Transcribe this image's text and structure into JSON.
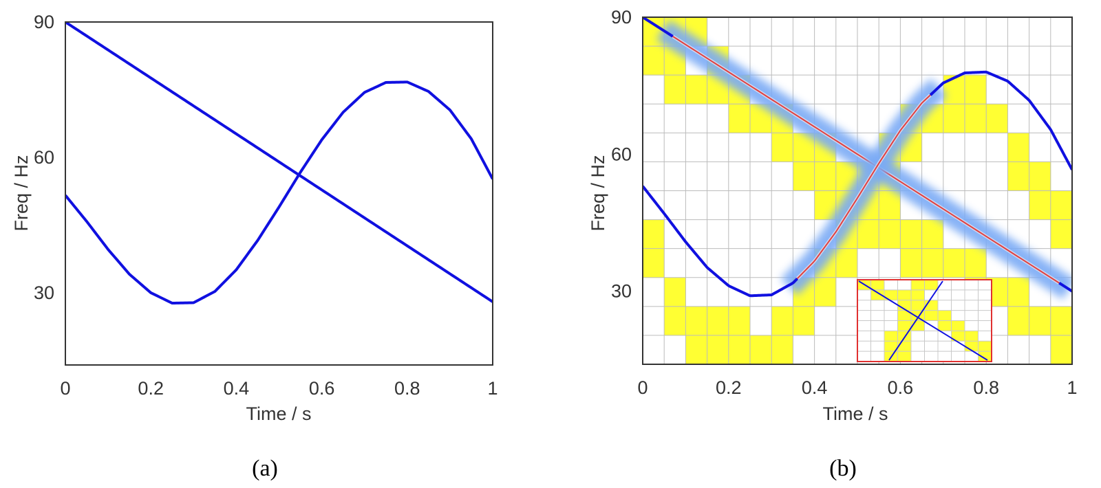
{
  "chart_data": [
    {
      "type": "line",
      "panel": "a",
      "caption": "(a)",
      "xlabel": "Time / s",
      "ylabel": "Freq / Hz",
      "xlim": [
        0,
        1
      ],
      "ylim": [
        14,
        90
      ],
      "xticks": [
        0,
        0.2,
        0.4,
        0.6,
        0.8,
        1
      ],
      "xtick_labels": [
        "0",
        "0.2",
        "0.4",
        "0.6",
        "0.8",
        "1"
      ],
      "yticks": [
        30,
        60,
        90
      ],
      "ytick_labels": [
        "30",
        "60",
        "90"
      ],
      "line_color": "#1010e0",
      "series": [
        {
          "x": [
            0,
            1
          ],
          "y": [
            90,
            28
          ]
        },
        {
          "x": [
            0,
            0.05,
            0.1,
            0.15,
            0.2,
            0.25,
            0.3,
            0.35,
            0.4,
            0.45,
            0.5,
            0.55,
            0.6,
            0.65,
            0.7,
            0.75,
            0.8,
            0.85,
            0.9,
            0.95,
            1
          ],
          "y": [
            51.6,
            45.8,
            39.6,
            34.1,
            30.0,
            27.7,
            27.8,
            30.3,
            35.1,
            41.6,
            49.0,
            56.7,
            63.9,
            70.0,
            74.4,
            76.6,
            76.7,
            74.6,
            70.5,
            64.1,
            55.2
          ]
        }
      ]
    },
    {
      "type": "line",
      "panel": "b",
      "caption": "(b)",
      "xlabel": "Time / s",
      "ylabel": "Freq / Hz",
      "xlim": [
        0,
        1
      ],
      "ylim": [
        14,
        90
      ],
      "xticks": [
        0,
        0.2,
        0.4,
        0.6,
        0.8,
        1
      ],
      "xtick_labels": [
        "0",
        "0.2",
        "0.4",
        "0.6",
        "0.8",
        "1"
      ],
      "yticks": [
        30,
        60,
        90
      ],
      "ytick_labels": [
        "30",
        "60",
        "90"
      ],
      "grid": true,
      "grid_cols": 20,
      "grid_rows": 12,
      "line_color": "#1010e0",
      "highlight_color": "#ffff33",
      "glow_color": "#7aaaf5",
      "core_color": "#e04040",
      "inset_border_color": "#e03030",
      "series": [
        {
          "x": [
            0,
            1
          ],
          "y": [
            90,
            30
          ]
        },
        {
          "x": [
            0,
            0.05,
            0.1,
            0.15,
            0.2,
            0.25,
            0.3,
            0.35,
            0.4,
            0.45,
            0.5,
            0.55,
            0.6,
            0.65,
            0.7,
            0.75,
            0.8,
            0.85,
            0.9,
            0.95,
            1
          ],
          "y": [
            53,
            47,
            40.8,
            35.2,
            31.2,
            29.0,
            29.2,
            31.8,
            36.6,
            43.0,
            50.4,
            58.0,
            65.2,
            71.2,
            75.6,
            77.8,
            78.0,
            76.0,
            71.8,
            65.4,
            56.6
          ]
        }
      ],
      "highlighted_cells": [
        [
          0,
          11
        ],
        [
          1,
          11
        ],
        [
          2,
          11
        ],
        [
          0,
          10
        ],
        [
          1,
          10
        ],
        [
          3,
          10
        ],
        [
          1,
          9
        ],
        [
          2,
          9
        ],
        [
          3,
          9
        ],
        [
          4,
          9
        ],
        [
          14,
          9
        ],
        [
          15,
          9
        ],
        [
          4,
          8
        ],
        [
          5,
          8
        ],
        [
          6,
          8
        ],
        [
          12,
          8
        ],
        [
          13,
          8
        ],
        [
          14,
          8
        ],
        [
          15,
          8
        ],
        [
          16,
          8
        ],
        [
          6,
          7
        ],
        [
          7,
          7
        ],
        [
          8,
          7
        ],
        [
          11,
          7
        ],
        [
          12,
          7
        ],
        [
          17,
          7
        ],
        [
          7,
          6
        ],
        [
          8,
          6
        ],
        [
          9,
          6
        ],
        [
          10,
          6
        ],
        [
          11,
          6
        ],
        [
          17,
          6
        ],
        [
          18,
          6
        ],
        [
          8,
          5
        ],
        [
          9,
          5
        ],
        [
          10,
          5
        ],
        [
          11,
          5
        ],
        [
          18,
          5
        ],
        [
          19,
          5
        ],
        [
          0,
          4
        ],
        [
          9,
          4
        ],
        [
          10,
          4
        ],
        [
          11,
          4
        ],
        [
          12,
          4
        ],
        [
          13,
          4
        ],
        [
          19,
          4
        ],
        [
          0,
          3
        ],
        [
          8,
          3
        ],
        [
          9,
          3
        ],
        [
          12,
          3
        ],
        [
          13,
          3
        ],
        [
          14,
          3
        ],
        [
          15,
          3
        ],
        [
          1,
          2
        ],
        [
          7,
          2
        ],
        [
          8,
          2
        ],
        [
          15,
          2
        ],
        [
          16,
          2
        ],
        [
          17,
          2
        ],
        [
          1,
          1
        ],
        [
          2,
          1
        ],
        [
          3,
          1
        ],
        [
          4,
          1
        ],
        [
          6,
          1
        ],
        [
          7,
          1
        ],
        [
          17,
          1
        ],
        [
          18,
          1
        ],
        [
          19,
          1
        ],
        [
          2,
          0
        ],
        [
          3,
          0
        ],
        [
          4,
          0
        ],
        [
          5,
          0
        ],
        [
          6,
          0
        ],
        [
          19,
          0
        ]
      ],
      "inset_highlighted_cells": [
        [
          0,
          7
        ],
        [
          1,
          7
        ],
        [
          4,
          7
        ],
        [
          5,
          7
        ],
        [
          1,
          6
        ],
        [
          2,
          6
        ],
        [
          3,
          6
        ],
        [
          4,
          6
        ],
        [
          3,
          5
        ],
        [
          4,
          5
        ],
        [
          5,
          5
        ],
        [
          3,
          4
        ],
        [
          4,
          4
        ],
        [
          5,
          4
        ],
        [
          6,
          4
        ],
        [
          3,
          3
        ],
        [
          4,
          3
        ],
        [
          6,
          3
        ],
        [
          7,
          3
        ],
        [
          2,
          2
        ],
        [
          3,
          2
        ],
        [
          7,
          2
        ],
        [
          8,
          2
        ],
        [
          2,
          1
        ],
        [
          3,
          1
        ],
        [
          8,
          1
        ],
        [
          9,
          1
        ],
        [
          2,
          0
        ],
        [
          3,
          0
        ],
        [
          9,
          0
        ]
      ]
    }
  ]
}
